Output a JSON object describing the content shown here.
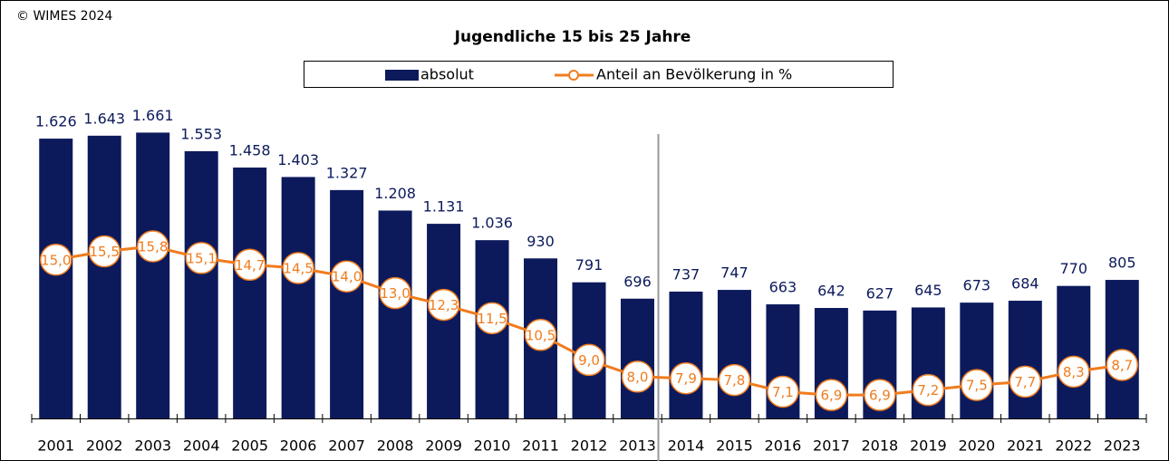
{
  "chart_data": {
    "type": "bar_line",
    "title": "Jugendliche 15 bis 25 Jahre",
    "copyright": "© WIMES 2024",
    "categories": [
      "2001",
      "2002",
      "2003",
      "2004",
      "2005",
      "2006",
      "2007",
      "2008",
      "2009",
      "2010",
      "2011",
      "2012",
      "2013",
      "2014",
      "2015",
      "2016",
      "2017",
      "2018",
      "2019",
      "2020",
      "2021",
      "2022",
      "2023"
    ],
    "series": [
      {
        "name": "absolut",
        "type": "bar",
        "color": "#0c1a5c",
        "values": [
          1626,
          1643,
          1661,
          1553,
          1458,
          1403,
          1327,
          1208,
          1131,
          1036,
          930,
          791,
          696,
          737,
          747,
          663,
          642,
          627,
          645,
          673,
          684,
          770,
          805
        ],
        "value_labels": [
          "1.626",
          "1.643",
          "1.661",
          "1.553",
          "1.458",
          "1.403",
          "1.327",
          "1.208",
          "1.131",
          "1.036",
          "930",
          "791",
          "696",
          "737",
          "747",
          "663",
          "642",
          "627",
          "645",
          "673",
          "684",
          "770",
          "805"
        ]
      },
      {
        "name": "Anteil an Bevölkerung in %",
        "type": "line",
        "axis": "y2",
        "color": "#f07c1e",
        "values": [
          15.0,
          15.5,
          15.8,
          15.1,
          14.7,
          14.5,
          14.0,
          13.0,
          12.3,
          11.5,
          10.5,
          9.0,
          8.0,
          7.9,
          7.8,
          7.1,
          6.9,
          6.9,
          7.2,
          7.5,
          7.7,
          8.3,
          8.7
        ],
        "value_labels": [
          "15,0",
          "15,5",
          "15,8",
          "15,1",
          "14,7",
          "14,5",
          "14,0",
          "13,0",
          "12,3",
          "11,5",
          "10,5",
          "9,0",
          "8,0",
          "7,9",
          "7,8",
          "7,1",
          "6,9",
          "6,9",
          "7,2",
          "7,5",
          "7,7",
          "8,3",
          "8,7"
        ]
      }
    ],
    "ylim": [
      0,
      2000
    ],
    "y2lim": [
      5.5,
      26.1
    ]
  }
}
